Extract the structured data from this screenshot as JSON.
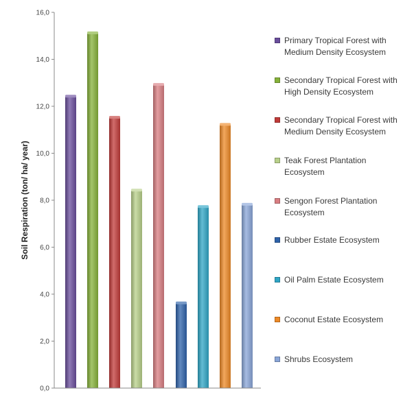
{
  "chart_data": {
    "type": "bar",
    "ylabel": "Soil Respiration (ton/ ha/ year)",
    "xlabel": "",
    "ylim": [
      0,
      16
    ],
    "yticks": [
      "0,0",
      "2,0",
      "4,0",
      "6,0",
      "8,0",
      "10,0",
      "12,0",
      "14,0",
      "16,0"
    ],
    "grid": false,
    "legend_position": "right",
    "categories": [
      "Primary Tropical Forest with Medium Density Ecosystem",
      "Secondary Tropical Forest with High Density Ecosystem",
      "Secondary Tropical Forest with Medium Density Ecosystem",
      "Teak Forest Plantation Ecosystem",
      "Sengon Forest Plantation Ecosystem",
      "Rubber Estate Ecosystem",
      "Oil Palm Estate Ecosystem",
      "Coconut Estate Ecosystem",
      "Shrubs Ecosystem"
    ],
    "values": [
      12.4,
      15.1,
      11.5,
      8.4,
      12.9,
      3.6,
      7.7,
      11.2,
      7.8
    ],
    "colors": [
      "#6a4e9c",
      "#86b23a",
      "#c13b39",
      "#b8d08a",
      "#d97e82",
      "#2f63aa",
      "#2fa6c6",
      "#ee8a27",
      "#8aa6d8"
    ]
  },
  "legend": {
    "items": [
      {
        "label": "Primary Tropical Forest with Medium Density Ecosystem",
        "color": "#6a4e9c"
      },
      {
        "label": "Secondary Tropical Forest with High Density Ecosystem",
        "color": "#86b23a"
      },
      {
        "label": "Secondary Tropical Forest with Medium Density Ecosystem",
        "color": "#c13b39"
      },
      {
        "label": "Teak Forest Plantation Ecosystem",
        "color": "#b8d08a"
      },
      {
        "label": "Sengon Forest Plantation Ecosystem",
        "color": "#d97e82"
      },
      {
        "label": "Rubber Estate Ecosystem",
        "color": "#2f63aa"
      },
      {
        "label": "Oil Palm Estate Ecosystem",
        "color": "#2fa6c6"
      },
      {
        "label": "Coconut Estate Ecosystem",
        "color": "#ee8a27"
      },
      {
        "label": "Shrubs Ecosystem",
        "color": "#8aa6d8"
      }
    ]
  }
}
